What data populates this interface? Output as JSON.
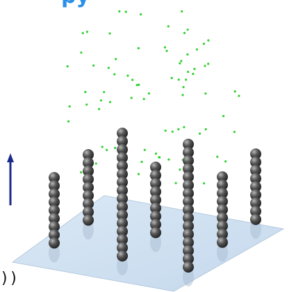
{
  "header": {
    "title_fragment": "py"
  },
  "footer": {
    "code_fragment": "))"
  }
}
